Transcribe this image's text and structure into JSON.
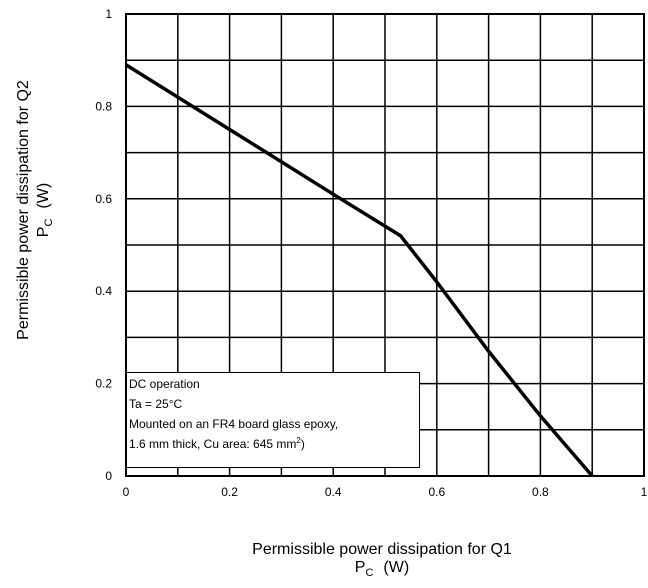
{
  "chart_data": {
    "type": "line",
    "title": "",
    "xlabel": "Permissible power dissipation for Q1",
    "xlabel_symbol": "P",
    "xlabel_subscript": "C",
    "xlabel_unit": "(W)",
    "ylabel": "Permissible power dissipation for Q2",
    "ylabel_symbol": "P",
    "ylabel_subscript": "C",
    "ylabel_unit": "(W)",
    "xlim": [
      0,
      1
    ],
    "ylim": [
      0,
      1
    ],
    "x_ticks": [
      "0",
      "0.2",
      "0.4",
      "0.6",
      "0.8",
      "1"
    ],
    "y_ticks": [
      "0",
      "0.2",
      "0.4",
      "0.6",
      "0.8",
      "1"
    ],
    "grid": true,
    "grid_divisions": 10,
    "series": [
      {
        "x": [
          0,
          0.2,
          0.4,
          0.53,
          0.6,
          0.7,
          0.8,
          0.9
        ],
        "y": [
          0.89,
          0.75,
          0.61,
          0.52,
          0.42,
          0.27,
          0.13,
          0
        ]
      }
    ],
    "annotations": [
      "DC operation",
      "Ta = 25°C",
      "Mounted on an FR4 board glass epoxy,",
      "1.6 mm thick, Cu area: 645 mm",
      "2",
      ")"
    ],
    "colors": {
      "line": "#000000",
      "grid": "#000000",
      "background": "#ffffff"
    }
  }
}
